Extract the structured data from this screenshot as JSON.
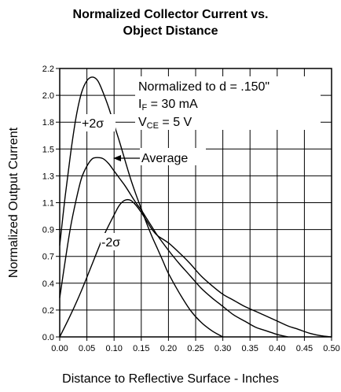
{
  "chart_data": {
    "type": "line",
    "title_line1": "Normalized Collector Current vs.",
    "title_line2": "Object Distance",
    "xlabel": "Distance to Reflective Surface - Inches",
    "ylabel": "Normalized Output Current",
    "xlim": [
      0,
      0.5
    ],
    "ylim": [
      0,
      2.2
    ],
    "x_ticks": [
      "0.00",
      "0.05",
      "0.10",
      "0.15",
      "0.20",
      "0.25",
      "0.30",
      "0.35",
      "0.40",
      "0.45",
      "0.50"
    ],
    "y_ticks": [
      "0.0",
      "0.2",
      "0.4",
      "0.7",
      "0.9",
      "1.1",
      "1.3",
      "1.5",
      "1.8",
      "2.0",
      "2.2"
    ],
    "grid": true,
    "note": {
      "line1": "Normalized to d = .150\"",
      "line2_main": "I",
      "line2_sub": "F",
      "line2_rest": " = 30 mA",
      "line3_main": "V",
      "line3_sub": "CE",
      "line3_rest": " = 5 V"
    },
    "series": [
      {
        "name": "+2σ",
        "x": [
          0.0,
          0.01,
          0.02,
          0.03,
          0.04,
          0.05,
          0.06,
          0.07,
          0.08,
          0.09,
          0.1,
          0.11,
          0.12,
          0.13,
          0.14,
          0.15,
          0.16,
          0.17,
          0.18,
          0.19,
          0.2,
          0.22,
          0.24,
          0.26,
          0.28,
          0.3
        ],
        "y": [
          0.75,
          1.15,
          1.5,
          1.8,
          2.0,
          2.1,
          2.13,
          2.1,
          2.0,
          1.88,
          1.74,
          1.6,
          1.45,
          1.3,
          1.17,
          1.05,
          0.93,
          0.82,
          0.72,
          0.62,
          0.52,
          0.36,
          0.22,
          0.12,
          0.05,
          0.0
        ]
      },
      {
        "name": "Average",
        "x": [
          0.0,
          0.01,
          0.02,
          0.03,
          0.04,
          0.05,
          0.06,
          0.07,
          0.08,
          0.09,
          0.1,
          0.11,
          0.12,
          0.13,
          0.14,
          0.15,
          0.16,
          0.17,
          0.18,
          0.2,
          0.22,
          0.24,
          0.26,
          0.28,
          0.3,
          0.32,
          0.34,
          0.36,
          0.38,
          0.4,
          0.42
        ],
        "y": [
          0.32,
          0.62,
          0.9,
          1.12,
          1.3,
          1.4,
          1.46,
          1.47,
          1.46,
          1.42,
          1.36,
          1.3,
          1.24,
          1.17,
          1.1,
          1.04,
          0.97,
          0.9,
          0.83,
          0.71,
          0.6,
          0.5,
          0.4,
          0.32,
          0.25,
          0.18,
          0.13,
          0.08,
          0.05,
          0.02,
          0.0
        ]
      },
      {
        "name": "-2σ",
        "x": [
          0.0,
          0.02,
          0.04,
          0.06,
          0.08,
          0.1,
          0.11,
          0.12,
          0.13,
          0.14,
          0.15,
          0.16,
          0.17,
          0.18,
          0.2,
          0.22,
          0.24,
          0.26,
          0.28,
          0.3,
          0.32,
          0.34,
          0.36,
          0.38,
          0.4,
          0.42,
          0.44,
          0.46,
          0.48,
          0.5
        ],
        "y": [
          0.0,
          0.18,
          0.38,
          0.6,
          0.82,
          1.0,
          1.08,
          1.12,
          1.12,
          1.08,
          1.02,
          0.95,
          0.88,
          0.83,
          0.77,
          0.69,
          0.6,
          0.5,
          0.42,
          0.35,
          0.3,
          0.25,
          0.21,
          0.17,
          0.13,
          0.09,
          0.06,
          0.03,
          0.01,
          0.0
        ]
      }
    ],
    "series_labels": {
      "plus": "+2σ",
      "average": "Average",
      "minus": "-2σ"
    }
  }
}
